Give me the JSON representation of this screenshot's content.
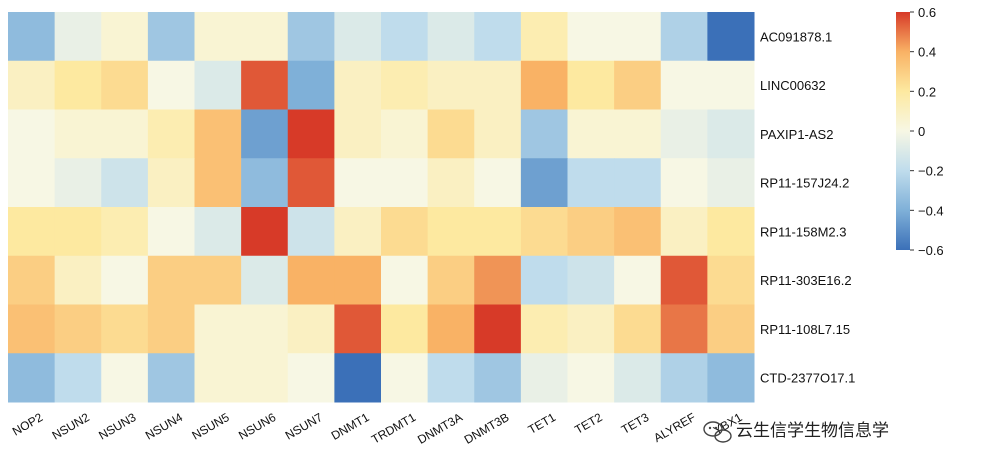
{
  "chart_data": {
    "type": "heatmap",
    "rows": [
      "AC091878.1",
      "LINC00632",
      "PAXIP1-AS2",
      "RP11-157J24.2",
      "RP11-158M2.3",
      "RP11-303E16.2",
      "RP11-108L7.15",
      "CTD-2377O17.1"
    ],
    "columns": [
      "NOP2",
      "NSUN2",
      "NSUN3",
      "NSUN4",
      "NSUN5",
      "NSUN6",
      "NSUN7",
      "DNMT1",
      "TRDMT1",
      "DNMT3A",
      "DNMT3B",
      "TET1",
      "TET2",
      "TET3",
      "ALYREF",
      "YBX1"
    ],
    "values": [
      [
        -0.35,
        -0.05,
        0.05,
        -0.3,
        0.05,
        0.05,
        -0.3,
        -0.1,
        -0.2,
        -0.1,
        -0.2,
        0.15,
        0.0,
        0.0,
        -0.25,
        -0.65
      ],
      [
        0.1,
        0.2,
        0.25,
        0.0,
        -0.1,
        0.55,
        -0.4,
        0.1,
        0.15,
        0.1,
        0.1,
        0.4,
        0.2,
        0.3,
        0.0,
        0.0
      ],
      [
        0.0,
        0.05,
        0.05,
        0.15,
        0.35,
        -0.45,
        0.65,
        0.1,
        0.05,
        0.25,
        0.1,
        -0.3,
        0.05,
        0.05,
        -0.05,
        -0.1
      ],
      [
        0.0,
        -0.05,
        -0.15,
        0.1,
        0.35,
        -0.35,
        0.55,
        0.0,
        0.0,
        0.1,
        0.0,
        -0.45,
        -0.2,
        -0.2,
        0.0,
        -0.05
      ],
      [
        0.2,
        0.2,
        0.15,
        0.0,
        -0.1,
        0.6,
        -0.15,
        0.1,
        0.25,
        0.2,
        0.2,
        0.25,
        0.3,
        0.35,
        0.1,
        0.2
      ],
      [
        0.3,
        0.1,
        0.0,
        0.3,
        0.3,
        -0.1,
        0.4,
        0.4,
        0.0,
        0.3,
        0.45,
        -0.2,
        -0.15,
        0.0,
        0.55,
        0.25
      ],
      [
        0.35,
        0.3,
        0.25,
        0.3,
        0.05,
        0.05,
        0.1,
        0.55,
        0.2,
        0.4,
        0.6,
        0.15,
        0.1,
        0.25,
        0.5,
        0.3
      ],
      [
        -0.35,
        -0.2,
        0.0,
        -0.3,
        0.05,
        0.05,
        0.0,
        -0.6,
        0.0,
        -0.2,
        -0.3,
        -0.05,
        0.0,
        -0.1,
        -0.25,
        -0.35
      ]
    ],
    "colorbar": {
      "min": -0.6,
      "max": 0.6,
      "colors": [
        "#3b70b8",
        "#7fb0d8",
        "#bfdcec",
        "#f7f7e4",
        "#fde9a0",
        "#f9b265",
        "#d73a28"
      ],
      "ticks": [
        {
          "value": 0.6,
          "label": "0.6"
        },
        {
          "value": 0.4,
          "label": "0.4"
        },
        {
          "value": 0.2,
          "label": "0.2"
        },
        {
          "value": 0.0,
          "label": "0"
        },
        {
          "value": -0.2,
          "label": "−0.2"
        },
        {
          "value": -0.4,
          "label": "−0.4"
        },
        {
          "value": -0.6,
          "label": "−0.6"
        }
      ]
    },
    "title": "",
    "xlabel": "",
    "ylabel": ""
  },
  "watermark": {
    "text": "云生信学生物信息学",
    "icon": "wechat-icon"
  }
}
